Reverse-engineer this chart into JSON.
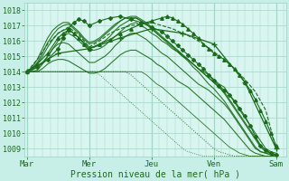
{
  "background_color": "#c8eee8",
  "plot_bg_color": "#d8f5ef",
  "grid_color": "#a0d8c8",
  "line_color": "#1a6b1a",
  "title": "Pression niveau de la mer( hPa )",
  "x_tick_labels": [
    "Mar",
    "Mer",
    "Jeu",
    "Ven",
    "Sam"
  ],
  "x_tick_positions": [
    0,
    48,
    96,
    144,
    192
  ],
  "ylim": [
    1008.5,
    1018.5
  ],
  "xlim": [
    -2,
    200
  ],
  "yticks": [
    1009,
    1010,
    1011,
    1012,
    1013,
    1014,
    1015,
    1016,
    1017,
    1018
  ],
  "series": [
    {
      "x": [
        0,
        4,
        8,
        12,
        16,
        20,
        24,
        28,
        32,
        36,
        40,
        44,
        48,
        52,
        56,
        60,
        64,
        68,
        72,
        76,
        80,
        84,
        88,
        92,
        96,
        100,
        104,
        108,
        112,
        116,
        120,
        124,
        128,
        132,
        136,
        140,
        144,
        148,
        152,
        156,
        160,
        164,
        168,
        172,
        176,
        180,
        184,
        188,
        192
      ],
      "y": [
        1014.0,
        1014.1,
        1014.3,
        1014.6,
        1015.0,
        1015.5,
        1016.0,
        1016.3,
        1016.5,
        1016.3,
        1016.0,
        1015.7,
        1015.4,
        1015.4,
        1015.5,
        1015.7,
        1016.0,
        1016.3,
        1016.6,
        1016.9,
        1017.1,
        1017.2,
        1017.0,
        1016.8,
        1016.5,
        1016.3,
        1016.0,
        1015.8,
        1015.5,
        1015.3,
        1015.0,
        1014.8,
        1014.5,
        1014.2,
        1014.0,
        1013.8,
        1013.5,
        1013.2,
        1013.0,
        1012.5,
        1012.0,
        1011.5,
        1011.0,
        1010.5,
        1010.0,
        1009.5,
        1009.0,
        1008.8,
        1008.7
      ],
      "style": "solid",
      "lw": 0.8
    },
    {
      "x": [
        0,
        4,
        8,
        12,
        16,
        20,
        24,
        28,
        32,
        36,
        40,
        44,
        48,
        52,
        56,
        60,
        64,
        68,
        72,
        76,
        80,
        84,
        88,
        92,
        96,
        100,
        104,
        108,
        112,
        116,
        120,
        124,
        128,
        132,
        136,
        140,
        144,
        148,
        152,
        156,
        160,
        164,
        168,
        172,
        176,
        180,
        184,
        188,
        192
      ],
      "y": [
        1014.0,
        1014.2,
        1014.5,
        1015.0,
        1015.6,
        1016.1,
        1016.5,
        1016.7,
        1016.8,
        1016.5,
        1016.2,
        1015.9,
        1015.6,
        1015.6,
        1015.8,
        1016.0,
        1016.3,
        1016.7,
        1017.0,
        1017.2,
        1017.4,
        1017.5,
        1017.3,
        1017.1,
        1016.8,
        1016.5,
        1016.2,
        1016.0,
        1015.7,
        1015.4,
        1015.1,
        1014.8,
        1014.5,
        1014.2,
        1013.9,
        1013.6,
        1013.3,
        1013.0,
        1012.7,
        1012.2,
        1011.7,
        1011.2,
        1010.7,
        1010.2,
        1009.7,
        1009.2,
        1008.9,
        1008.7,
        1008.6
      ],
      "style": "solid",
      "lw": 0.8
    },
    {
      "x": [
        0,
        4,
        8,
        12,
        16,
        20,
        24,
        28,
        32,
        36,
        40,
        44,
        48,
        52,
        56,
        60,
        64,
        68,
        72,
        76,
        80,
        84,
        88,
        92,
        96,
        100,
        104,
        108,
        112,
        116,
        120,
        124,
        128,
        132,
        136,
        140,
        144,
        148,
        152,
        156,
        160,
        164,
        168,
        172,
        176,
        180,
        184,
        188,
        192
      ],
      "y": [
        1014.0,
        1014.2,
        1014.6,
        1015.2,
        1015.9,
        1016.4,
        1016.8,
        1017.0,
        1017.1,
        1016.8,
        1016.5,
        1016.1,
        1015.8,
        1015.9,
        1016.1,
        1016.4,
        1016.7,
        1017.0,
        1017.3,
        1017.5,
        1017.6,
        1017.6,
        1017.4,
        1017.2,
        1016.9,
        1016.6,
        1016.3,
        1016.0,
        1015.7,
        1015.4,
        1015.1,
        1014.8,
        1014.5,
        1014.2,
        1013.9,
        1013.6,
        1013.3,
        1013.0,
        1012.6,
        1012.1,
        1011.6,
        1011.1,
        1010.6,
        1010.1,
        1009.6,
        1009.1,
        1008.8,
        1008.7,
        1008.6
      ],
      "style": "solid",
      "lw": 0.8
    },
    {
      "x": [
        0,
        4,
        8,
        12,
        16,
        20,
        24,
        28,
        32,
        36,
        40,
        44,
        48,
        52,
        56,
        60,
        64,
        68,
        72,
        76,
        80,
        84,
        88,
        92,
        96,
        100,
        104,
        108,
        112,
        116,
        120,
        124,
        128,
        132,
        136,
        140,
        144,
        148,
        152,
        156,
        160,
        164,
        168,
        172,
        176,
        180,
        184,
        188,
        192
      ],
      "y": [
        1014.0,
        1014.3,
        1014.8,
        1015.5,
        1016.2,
        1016.7,
        1017.0,
        1017.2,
        1017.2,
        1016.9,
        1016.6,
        1016.2,
        1015.9,
        1016.0,
        1016.2,
        1016.5,
        1016.8,
        1017.1,
        1017.3,
        1017.5,
        1017.5,
        1017.5,
        1017.3,
        1017.1,
        1016.8,
        1016.5,
        1016.2,
        1015.9,
        1015.6,
        1015.3,
        1015.0,
        1014.7,
        1014.3,
        1014.0,
        1013.6,
        1013.2,
        1012.9,
        1012.5,
        1012.1,
        1011.6,
        1011.1,
        1010.6,
        1010.1,
        1009.6,
        1009.1,
        1008.8,
        1008.7,
        1008.6,
        1008.5
      ],
      "style": "solid",
      "lw": 0.8
    },
    {
      "x": [
        0,
        4,
        8,
        12,
        16,
        20,
        24,
        28,
        32,
        36,
        40,
        44,
        48,
        52,
        56,
        60,
        64,
        68,
        72,
        76,
        80,
        84,
        88,
        92,
        96,
        100,
        104,
        108,
        112,
        116,
        120,
        124,
        128,
        132,
        136,
        140,
        144,
        148,
        152,
        156,
        160,
        164,
        168,
        172,
        176,
        180,
        184,
        188,
        192
      ],
      "y": [
        1014.0,
        1014.0,
        1014.1,
        1014.5,
        1015.0,
        1015.5,
        1015.8,
        1015.9,
        1015.8,
        1015.5,
        1015.2,
        1014.9,
        1014.6,
        1014.6,
        1014.8,
        1015.0,
        1015.3,
        1015.7,
        1016.0,
        1016.3,
        1016.5,
        1016.5,
        1016.3,
        1016.1,
        1015.8,
        1015.5,
        1015.2,
        1015.0,
        1014.7,
        1014.4,
        1014.1,
        1013.8,
        1013.5,
        1013.2,
        1013.0,
        1012.8,
        1012.5,
        1012.2,
        1011.9,
        1011.5,
        1011.0,
        1010.5,
        1010.0,
        1009.5,
        1009.0,
        1008.8,
        1008.7,
        1008.6,
        1008.5
      ],
      "style": "solid",
      "lw": 0.8
    },
    {
      "x": [
        0,
        4,
        8,
        12,
        16,
        20,
        24,
        28,
        32,
        36,
        40,
        44,
        48,
        52,
        56,
        60,
        64,
        68,
        72,
        76,
        80,
        84,
        88,
        92,
        96,
        100,
        104,
        108,
        112,
        116,
        120,
        124,
        128,
        132,
        136,
        140,
        144,
        148,
        152,
        156,
        160,
        164,
        168,
        172,
        176,
        180,
        184,
        188,
        192
      ],
      "y": [
        1014.0,
        1014.0,
        1014.0,
        1014.2,
        1014.5,
        1014.7,
        1014.8,
        1014.8,
        1014.7,
        1014.5,
        1014.3,
        1014.1,
        1013.9,
        1013.9,
        1014.0,
        1014.2,
        1014.5,
        1014.8,
        1015.1,
        1015.3,
        1015.4,
        1015.4,
        1015.2,
        1015.0,
        1014.8,
        1014.5,
        1014.3,
        1014.0,
        1013.7,
        1013.4,
        1013.2,
        1013.0,
        1012.7,
        1012.4,
        1012.1,
        1011.8,
        1011.5,
        1011.2,
        1010.9,
        1010.5,
        1010.1,
        1009.7,
        1009.3,
        1008.9,
        1008.7,
        1008.6,
        1008.5,
        1008.5,
        1008.5
      ],
      "style": "solid",
      "lw": 0.8
    },
    {
      "x": [
        0,
        4,
        8,
        12,
        16,
        20,
        24,
        28,
        32,
        36,
        40,
        44,
        48,
        52,
        56,
        60,
        64,
        68,
        72,
        76,
        80,
        84,
        88,
        92,
        96,
        100,
        104,
        108,
        112,
        116,
        120,
        124,
        128,
        132,
        136,
        140,
        144,
        148,
        152,
        156,
        160,
        164,
        168,
        172,
        176,
        180,
        184,
        188,
        192
      ],
      "y": [
        1014.0,
        1014.0,
        1014.0,
        1014.0,
        1014.0,
        1014.0,
        1014.0,
        1014.0,
        1014.0,
        1014.0,
        1014.0,
        1014.0,
        1014.0,
        1014.0,
        1014.0,
        1014.0,
        1014.0,
        1014.0,
        1014.0,
        1014.0,
        1014.0,
        1014.0,
        1014.0,
        1013.8,
        1013.5,
        1013.2,
        1013.0,
        1012.7,
        1012.4,
        1012.1,
        1011.8,
        1011.5,
        1011.2,
        1010.9,
        1010.6,
        1010.3,
        1010.0,
        1009.7,
        1009.4,
        1009.1,
        1008.9,
        1008.7,
        1008.6,
        1008.5,
        1008.5,
        1008.5,
        1008.5,
        1008.5,
        1008.5
      ],
      "style": "solid",
      "lw": 0.6
    },
    {
      "x": [
        0,
        4,
        8,
        12,
        16,
        20,
        24,
        28,
        32,
        36,
        40,
        44,
        48,
        52,
        56,
        60,
        64,
        68,
        72,
        76,
        80,
        84,
        88,
        92,
        96,
        100,
        104,
        108,
        112,
        116,
        120,
        124,
        128,
        132,
        136,
        140,
        144,
        148,
        152,
        156,
        160,
        164,
        168,
        172,
        176,
        180,
        184,
        188,
        192
      ],
      "y": [
        1014.0,
        1014.0,
        1014.0,
        1014.0,
        1014.0,
        1014.0,
        1014.0,
        1014.0,
        1014.0,
        1014.0,
        1014.0,
        1014.0,
        1014.0,
        1014.0,
        1014.0,
        1014.0,
        1014.0,
        1014.0,
        1014.0,
        1014.0,
        1013.8,
        1013.5,
        1013.2,
        1012.9,
        1012.6,
        1012.3,
        1012.0,
        1011.7,
        1011.4,
        1011.1,
        1010.8,
        1010.5,
        1010.2,
        1009.9,
        1009.6,
        1009.3,
        1009.0,
        1008.8,
        1008.7,
        1008.6,
        1008.5,
        1008.5,
        1008.5,
        1008.5,
        1008.5,
        1008.5,
        1008.5,
        1008.5,
        1008.5
      ],
      "style": "dotted",
      "lw": 0.7
    },
    {
      "x": [
        0,
        4,
        8,
        12,
        16,
        20,
        24,
        28,
        32,
        36,
        40,
        44,
        48,
        52,
        56,
        60,
        64,
        68,
        72,
        76,
        80,
        84,
        88,
        92,
        96,
        100,
        104,
        108,
        112,
        116,
        120,
        124,
        128,
        132,
        136,
        140,
        144,
        148,
        152,
        156,
        160,
        164,
        168,
        172,
        176,
        180,
        184,
        188,
        192
      ],
      "y": [
        1014.0,
        1014.0,
        1014.0,
        1014.0,
        1014.0,
        1014.0,
        1014.0,
        1014.0,
        1014.0,
        1014.0,
        1014.0,
        1014.0,
        1014.0,
        1014.0,
        1013.8,
        1013.5,
        1013.2,
        1012.9,
        1012.6,
        1012.3,
        1012.0,
        1011.7,
        1011.4,
        1011.1,
        1010.8,
        1010.5,
        1010.2,
        1009.9,
        1009.6,
        1009.3,
        1009.0,
        1008.8,
        1008.7,
        1008.6,
        1008.5,
        1008.5,
        1008.5,
        1008.5,
        1008.5,
        1008.5,
        1008.5,
        1008.5,
        1008.5,
        1008.5,
        1008.5,
        1008.5,
        1008.5,
        1008.5,
        1008.5
      ],
      "style": "dotted",
      "lw": 0.6
    }
  ],
  "marker_lines": [
    {
      "x": [
        0,
        8,
        16,
        24,
        28,
        32,
        36,
        40,
        44,
        48,
        56,
        64,
        72,
        80,
        88,
        96,
        104,
        108,
        112,
        116,
        120,
        124,
        128,
        132,
        136,
        140,
        144,
        148,
        152,
        156,
        160,
        164,
        168,
        172,
        176,
        180,
        184,
        188,
        192
      ],
      "y": [
        1014.0,
        1014.5,
        1015.2,
        1016.2,
        1016.5,
        1016.7,
        1016.5,
        1016.2,
        1015.8,
        1015.5,
        1015.8,
        1016.1,
        1016.5,
        1016.8,
        1017.1,
        1017.3,
        1017.5,
        1017.6,
        1017.5,
        1017.3,
        1017.1,
        1016.8,
        1016.5,
        1016.2,
        1015.8,
        1015.5,
        1015.2,
        1015.0,
        1014.8,
        1014.5,
        1014.2,
        1013.8,
        1013.3,
        1012.8,
        1012.2,
        1011.5,
        1010.8,
        1010.0,
        1009.2
      ],
      "style": "solid",
      "marker": "^",
      "ms": 2.5,
      "lw": 0.8
    },
    {
      "x": [
        0,
        8,
        16,
        24,
        28,
        32,
        36,
        40,
        44,
        48,
        56,
        64,
        72,
        80,
        88,
        96,
        104,
        108,
        112,
        116,
        120,
        124,
        128,
        132,
        136,
        140,
        144,
        148,
        152,
        156,
        160,
        164,
        168,
        172,
        176,
        180,
        184,
        188,
        192
      ],
      "y": [
        1014.0,
        1014.3,
        1014.8,
        1015.5,
        1016.2,
        1016.8,
        1017.2,
        1017.4,
        1017.3,
        1017.0,
        1017.3,
        1017.5,
        1017.6,
        1017.4,
        1017.2,
        1016.9,
        1016.6,
        1016.3,
        1016.0,
        1015.7,
        1015.4,
        1015.1,
        1014.8,
        1014.5,
        1014.2,
        1013.8,
        1013.4,
        1013.1,
        1012.8,
        1012.5,
        1012.1,
        1011.6,
        1011.1,
        1010.5,
        1009.8,
        1009.2,
        1008.9,
        1008.7,
        1008.6
      ],
      "style": "solid",
      "marker": "D",
      "ms": 2.0,
      "lw": 0.8
    },
    {
      "x": [
        0,
        8,
        16,
        24,
        32,
        40,
        48,
        56,
        64,
        72,
        80,
        96,
        112,
        120,
        128,
        136,
        144,
        152,
        160,
        168,
        176,
        184,
        192
      ],
      "y": [
        1014.0,
        1014.8,
        1015.8,
        1016.5,
        1016.9,
        1016.4,
        1015.6,
        1016.0,
        1016.5,
        1016.8,
        1017.0,
        1017.2,
        1016.8,
        1016.5,
        1016.2,
        1015.8,
        1015.3,
        1014.8,
        1014.2,
        1013.5,
        1012.7,
        1011.5,
        1009.0
      ],
      "style": "dashed",
      "marker": null,
      "ms": 0,
      "lw": 0.8
    },
    {
      "x": [
        0,
        24,
        48,
        72,
        96,
        120,
        144,
        168,
        192
      ],
      "y": [
        1014.0,
        1015.2,
        1015.5,
        1016.2,
        1016.8,
        1016.5,
        1015.8,
        1013.3,
        1009.0
      ],
      "style": "solid",
      "marker": "+",
      "ms": 4,
      "lw": 0.9
    }
  ]
}
